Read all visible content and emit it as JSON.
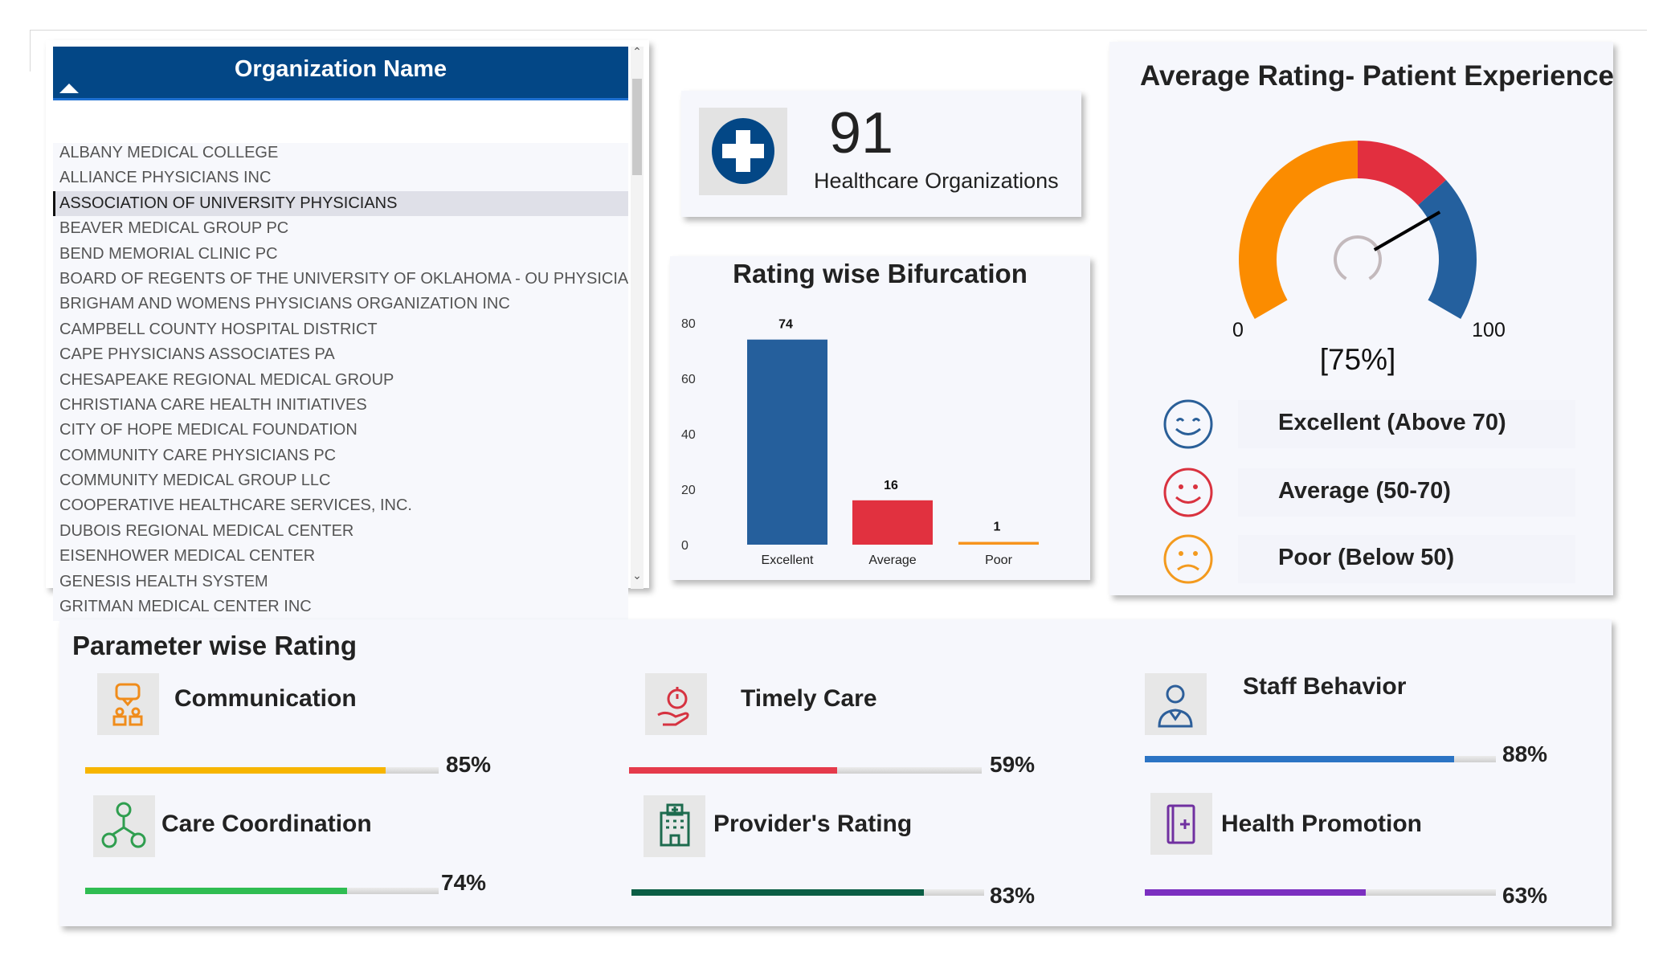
{
  "organization_list": {
    "header": "Organization Name",
    "sort": "ascending",
    "selected_index": 2,
    "items": [
      "ALBANY MEDICAL COLLEGE",
      "ALLIANCE PHYSICIANS INC",
      "ASSOCIATION OF UNIVERSITY PHYSICIANS",
      "BEAVER MEDICAL GROUP PC",
      "BEND MEMORIAL CLINIC PC",
      "BOARD OF REGENTS OF THE UNIVERSITY OF OKLAHOMA - OU PHYSICIANS",
      "BRIGHAM AND WOMENS PHYSICIANS ORGANIZATION INC",
      "CAMPBELL COUNTY HOSPITAL DISTRICT",
      "CAPE PHYSICIANS ASSOCIATES PA",
      "CHESAPEAKE REGIONAL MEDICAL GROUP",
      "CHRISTIANA CARE HEALTH INITIATIVES",
      "CITY OF HOPE MEDICAL FOUNDATION",
      "COMMUNITY CARE PHYSICIANS PC",
      "COMMUNITY MEDICAL GROUP LLC",
      "COOPERATIVE HEALTHCARE SERVICES, INC.",
      "DUBOIS REGIONAL MEDICAL CENTER",
      "EISENHOWER MEDICAL CENTER",
      "GENESIS HEALTH SYSTEM",
      "GRITMAN MEDICAL CENTER INC"
    ]
  },
  "kpi": {
    "value": "91",
    "label": "Healthcare Organizations",
    "icon": "medical-cross-icon",
    "color": "#034786"
  },
  "chart_data": {
    "type": "bar",
    "title": "Rating wise Bifurcation",
    "categories": [
      "Excellent",
      "Average",
      "Poor"
    ],
    "values": [
      74,
      16,
      1
    ],
    "colors": [
      "#255f9c",
      "#e1313f",
      "#f7941d"
    ],
    "ylim": [
      0,
      80
    ],
    "yticks": [
      0,
      20,
      40,
      60,
      80
    ],
    "data_labels": true,
    "grid": false
  },
  "gauge": {
    "title": "Average Rating- Patient Experience",
    "min": 0,
    "max": 100,
    "min_label": "0",
    "max_label": "100",
    "value": 75,
    "value_label": "[75%]",
    "bands": [
      {
        "from": 0,
        "to": 50,
        "color": "#fb8c00"
      },
      {
        "from": 50,
        "to": 70,
        "color": "#e22f3f"
      },
      {
        "from": 70,
        "to": 100,
        "color": "#24609e"
      }
    ],
    "legend": [
      {
        "label": "Excellent (Above 70)",
        "icon": "happy-face-icon",
        "color": "#2a5f98"
      },
      {
        "label": "Average (50-70)",
        "icon": "smile-face-icon",
        "color": "#d9323f"
      },
      {
        "label": "Poor (Below 50)",
        "icon": "sad-face-icon",
        "color": "#f39a1e"
      }
    ]
  },
  "parameters": {
    "title": "Parameter wise Rating",
    "items": [
      {
        "label": "Communication",
        "value": 85,
        "pct_label": "85%",
        "color": "#f7b500",
        "icon": "communication-icon",
        "icon_color": "#f08c1b"
      },
      {
        "label": "Timely Care",
        "value": 59,
        "pct_label": "59%",
        "color": "#e53a4b",
        "icon": "stopwatch-hand-icon",
        "icon_color": "#d63341"
      },
      {
        "label": "Staff Behavior",
        "value": 88,
        "pct_label": "88%",
        "color": "#2c74c4",
        "icon": "doctor-icon",
        "icon_color": "#2d5f9a"
      },
      {
        "label": "Care Coordination",
        "value": 74,
        "pct_label": "74%",
        "color": "#2fbd52",
        "icon": "people-network-icon",
        "icon_color": "#2f9e4f"
      },
      {
        "label": "Provider's Rating",
        "value": 83,
        "pct_label": "83%",
        "color": "#0b5e45",
        "icon": "hospital-building-icon",
        "icon_color": "#1d6b4e"
      },
      {
        "label": "Health Promotion",
        "value": 63,
        "pct_label": "63%",
        "color": "#7b2fc0",
        "icon": "medical-book-icon",
        "icon_color": "#7030a0"
      }
    ]
  }
}
